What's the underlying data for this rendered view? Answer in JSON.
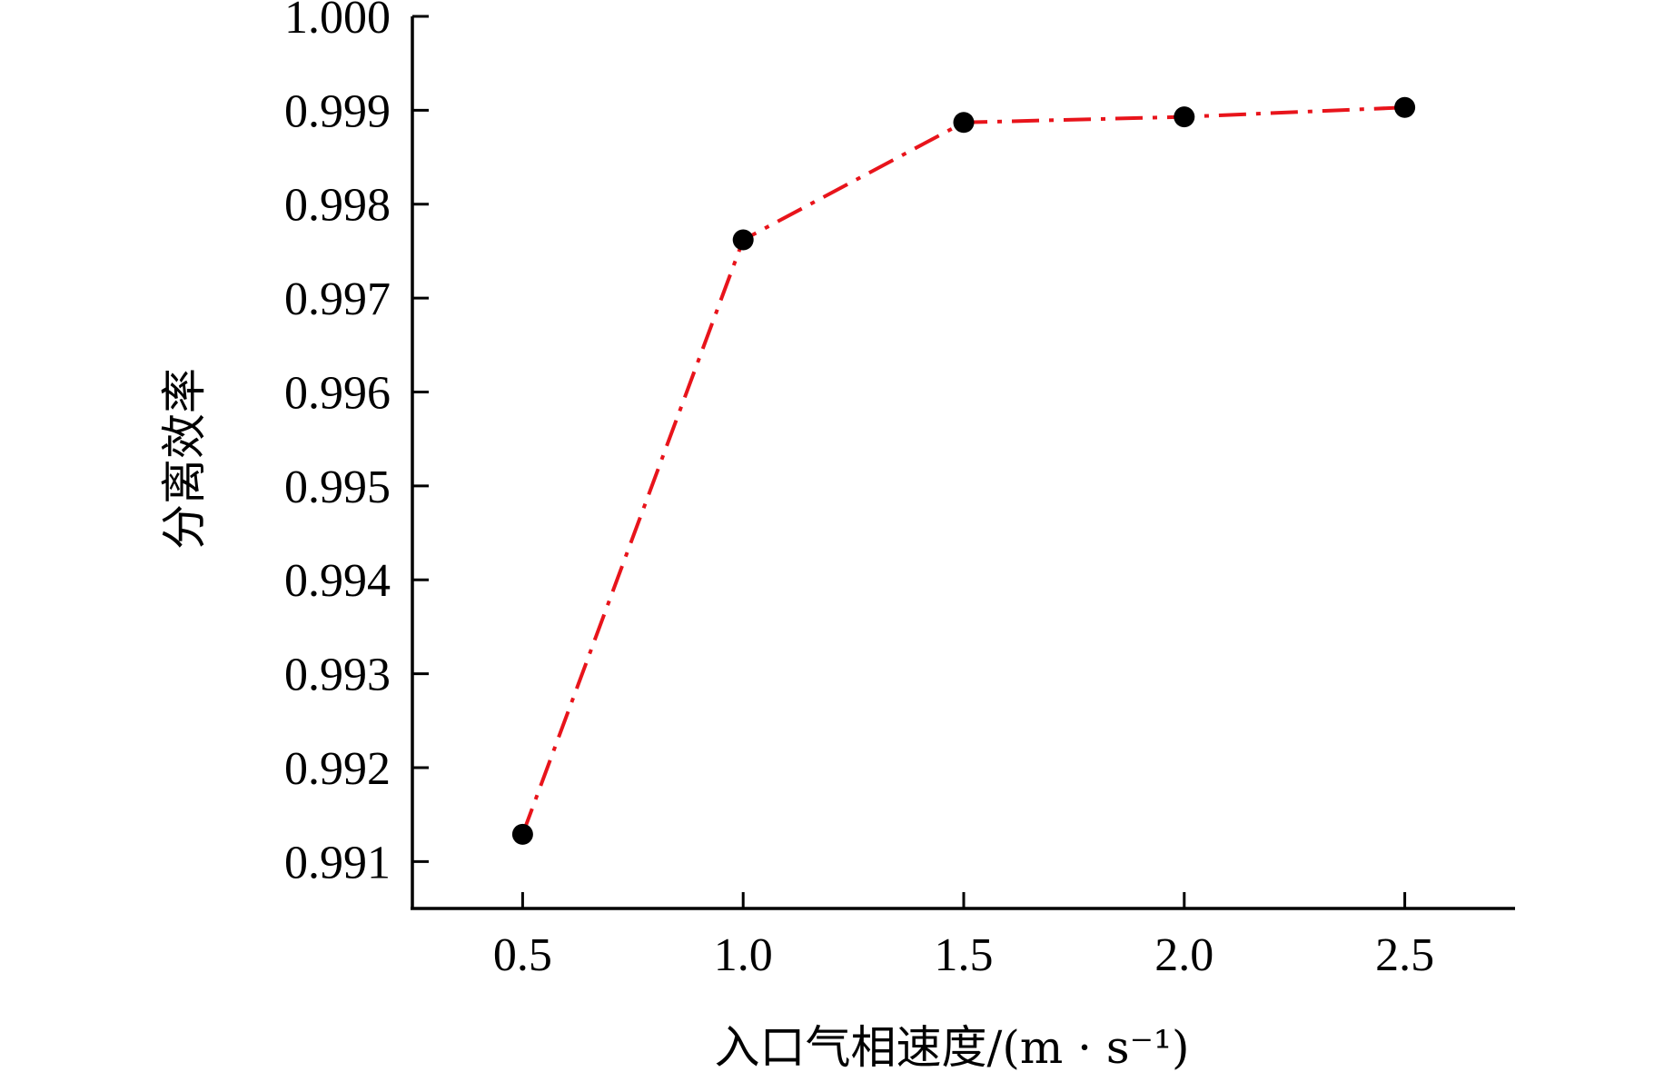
{
  "chart_data": {
    "type": "line",
    "title": "",
    "xlabel": "入口气相速度/(m · s⁻¹)",
    "ylabel": "分离效率",
    "x": [
      0.5,
      1.0,
      1.5,
      2.0,
      2.5
    ],
    "x_tick_labels": [
      "0.5",
      "1.0",
      "1.5",
      "2.0",
      "2.5"
    ],
    "xlim": [
      0.25,
      2.75
    ],
    "y_ticks": [
      0.991,
      0.992,
      0.993,
      0.994,
      0.995,
      0.996,
      0.997,
      0.998,
      0.999,
      1.0
    ],
    "y_tick_labels": [
      "0.991",
      "0.992",
      "0.993",
      "0.994",
      "0.995",
      "0.996",
      "0.997",
      "0.998",
      "0.999",
      "1.000"
    ],
    "ylim": [
      0.9905,
      1.0
    ],
    "grid": false,
    "legend": "none",
    "series": [
      {
        "values": [
          0.99129,
          0.99762,
          0.99887,
          0.99893,
          0.99903
        ],
        "line_color": "#e8141b",
        "line_style": "dash-dot",
        "marker": "circle",
        "marker_color": "#000000"
      }
    ]
  }
}
